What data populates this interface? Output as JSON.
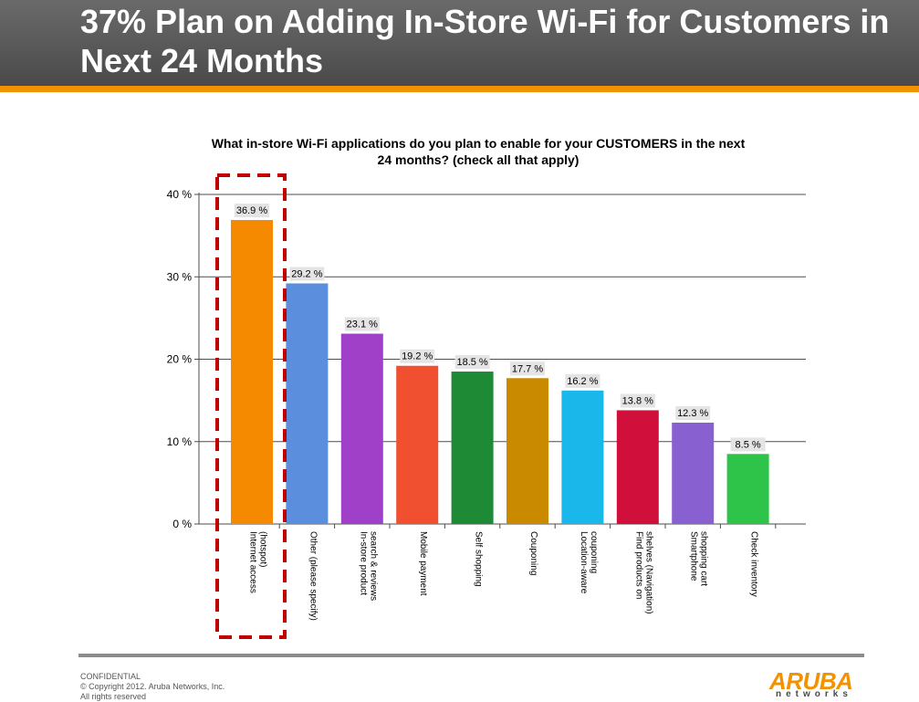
{
  "slide": {
    "title": "37% Plan on Adding In-Store Wi-Fi for Customers in Next 24 Months"
  },
  "footer": {
    "confidential": "CONFIDENTIAL",
    "copyright": "© Copyright 2012. Aruba Networks, Inc.",
    "rights": "All rights reserved"
  },
  "logo": {
    "brand": "ARUBA",
    "sub": "networks",
    "color": "#f39200"
  },
  "highlight": {
    "category_index": 0,
    "color": "#c00000"
  },
  "chart_data": {
    "type": "bar",
    "title": "What in-store Wi-Fi applications do you plan to enable for your CUSTOMERS in the next 24 months? (check all that apply)",
    "title_lines": [
      "What in-store Wi-Fi applications do you plan to enable for your CUSTOMERS in the next",
      "24 months? (check all that apply)"
    ],
    "categories": [
      [
        "Internet access",
        "(hotspot)"
      ],
      [
        "Other (please specify)"
      ],
      [
        "In-store product",
        "search & reviews"
      ],
      [
        "Mobile payment"
      ],
      [
        "Self shopping"
      ],
      [
        "Couponing"
      ],
      [
        "Location-aware",
        "couponing"
      ],
      [
        "Find products on",
        "shelves (Navigation)"
      ],
      [
        "Smartphone",
        "shopping cart"
      ],
      [
        "Check inventory"
      ]
    ],
    "values": [
      36.9,
      29.2,
      23.1,
      19.2,
      18.5,
      17.7,
      16.2,
      13.8,
      12.3,
      8.5
    ],
    "data_labels": [
      "36.9 %",
      "29.2 %",
      "23.1 %",
      "19.2 %",
      "18.5 %",
      "17.7 %",
      "16.2 %",
      "13.8 %",
      "12.3 %",
      "8.5 %"
    ],
    "colors": [
      "#f58a00",
      "#5b8fdd",
      "#a040c8",
      "#f05030",
      "#1e8a36",
      "#c98a00",
      "#19b7ea",
      "#d0103a",
      "#8860d0",
      "#2ec44a"
    ],
    "yticks": [
      0,
      10,
      20,
      30,
      40
    ],
    "ytick_labels": [
      "0 %",
      "10 %",
      "20 %",
      "30 %",
      "40 %"
    ],
    "ylim": [
      0,
      40
    ],
    "grid": true,
    "legend": false,
    "xlabel": "",
    "ylabel": ""
  }
}
